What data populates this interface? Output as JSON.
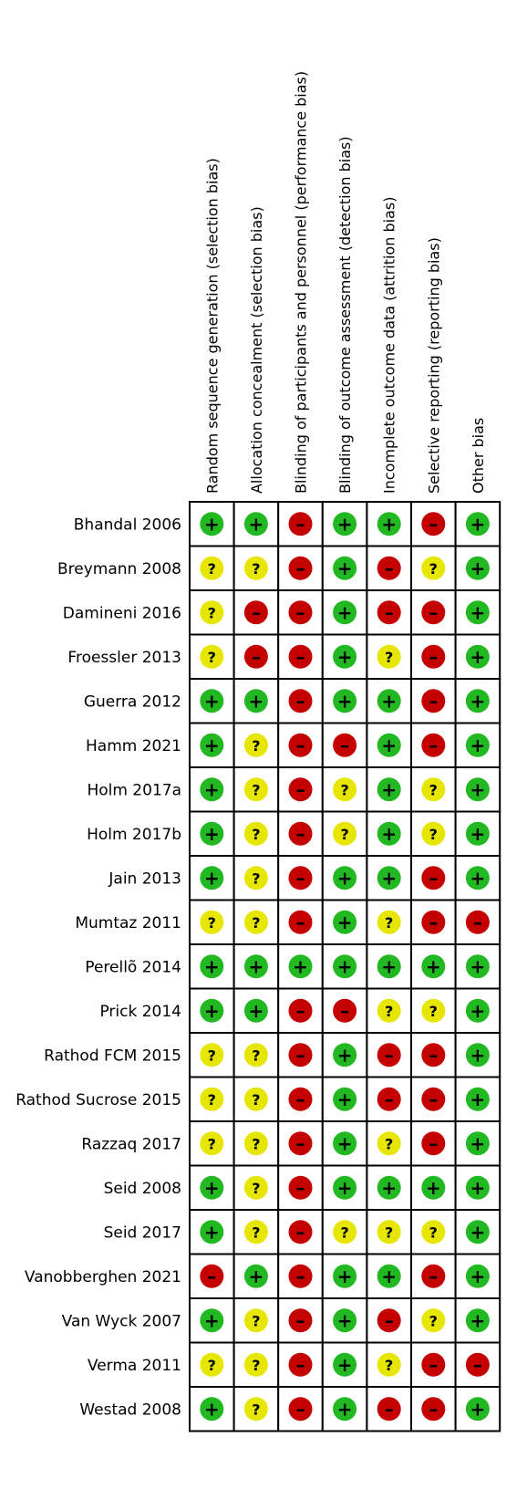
{
  "chart_data": {
    "type": "table",
    "domains": [
      "Random sequence generation (selection bias)",
      "Allocation concealment (selection bias)",
      "Blinding of participants and personnel (performance bias)",
      "Blinding of outcome assessment (detection bias)",
      "Incomplete outcome data (attrition bias)",
      "Selective reporting (reporting bias)",
      "Other bias"
    ],
    "studies": [
      "Bhandal 2006",
      "Breymann 2008",
      "Damineni 2016",
      "Froessler 2013",
      "Guerra 2012",
      "Hamm 2021",
      "Holm 2017a",
      "Holm 2017b",
      "Jain 2013",
      "Mumtaz 2011",
      "Perellõ 2014",
      "Prick 2014",
      "Rathod FCM 2015",
      "Rathod Sucrose 2015",
      "Razzaq 2017",
      "Seid 2008",
      "Seid 2017",
      "Vanobberghen 2021",
      "Van Wyck 2007",
      "Verma 2011",
      "Westad 2008"
    ],
    "judgements": [
      [
        "+",
        "+",
        "-",
        "+",
        "+",
        "-",
        "+"
      ],
      [
        "?",
        "?",
        "-",
        "+",
        "-",
        "?",
        "+"
      ],
      [
        "?",
        "-",
        "-",
        "+",
        "-",
        "-",
        "+"
      ],
      [
        "?",
        "-",
        "-",
        "+",
        "?",
        "-",
        "+"
      ],
      [
        "+",
        "+",
        "-",
        "+",
        "+",
        "-",
        "+"
      ],
      [
        "+",
        "?",
        "-",
        "-",
        "+",
        "-",
        "+"
      ],
      [
        "+",
        "?",
        "-",
        "?",
        "+",
        "?",
        "+"
      ],
      [
        "+",
        "?",
        "-",
        "?",
        "+",
        "?",
        "+"
      ],
      [
        "+",
        "?",
        "-",
        "+",
        "+",
        "-",
        "+"
      ],
      [
        "?",
        "?",
        "-",
        "+",
        "?",
        "-",
        "-"
      ],
      [
        "+",
        "+",
        "+",
        "+",
        "+",
        "+",
        "+"
      ],
      [
        "+",
        "+",
        "-",
        "-",
        "?",
        "?",
        "+"
      ],
      [
        "?",
        "?",
        "-",
        "+",
        "-",
        "-",
        "+"
      ],
      [
        "?",
        "?",
        "-",
        "+",
        "-",
        "-",
        "+"
      ],
      [
        "?",
        "?",
        "-",
        "+",
        "?",
        "-",
        "+"
      ],
      [
        "+",
        "?",
        "-",
        "+",
        "+",
        "+",
        "+"
      ],
      [
        "+",
        "?",
        "-",
        "?",
        "?",
        "?",
        "+"
      ],
      [
        "-",
        "+",
        "-",
        "+",
        "+",
        "-",
        "+"
      ],
      [
        "+",
        "?",
        "-",
        "+",
        "-",
        "?",
        "+"
      ],
      [
        "?",
        "?",
        "-",
        "+",
        "?",
        "-",
        "-"
      ],
      [
        "+",
        "?",
        "-",
        "+",
        "-",
        "-",
        "+"
      ]
    ],
    "judgement_colors": {
      "+": "#22b822",
      "?": "#e6e600",
      "-": "#c40000"
    },
    "judgement_symbols": {
      "+": "+",
      "?": "?",
      "-": "–"
    }
  }
}
